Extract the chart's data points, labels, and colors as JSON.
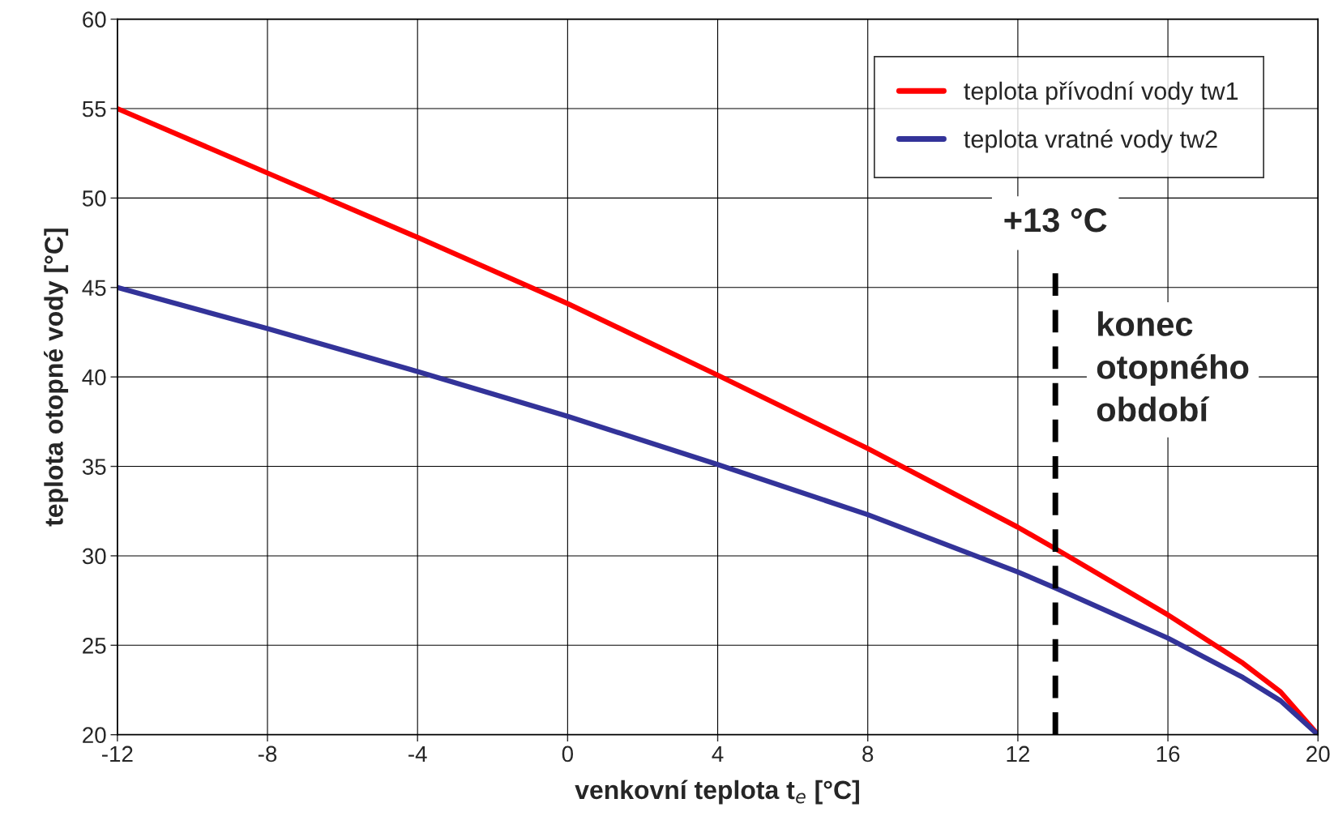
{
  "chart_data": {
    "type": "line",
    "xlabel": "venkovní teplota t$_{e}$ [°C]",
    "ylabel": "teplota otopné vody [°C]",
    "series": [
      {
        "name": "teplota přívodní vody tw1",
        "color": "#ff0000",
        "x": [
          -12,
          -8,
          -4,
          0,
          4,
          8,
          12,
          13,
          16,
          18,
          19,
          20
        ],
        "values": [
          55,
          51.4,
          47.8,
          44.1,
          40.1,
          36.0,
          31.6,
          30.4,
          26.7,
          24.0,
          22.4,
          20
        ]
      },
      {
        "name": "teplota vratné vody tw2",
        "color": "#333399",
        "x": [
          -12,
          -8,
          -4,
          0,
          4,
          8,
          12,
          13,
          16,
          18,
          19,
          20
        ],
        "values": [
          45,
          42.7,
          40.3,
          37.8,
          35.1,
          32.3,
          29.1,
          28.2,
          25.4,
          23.2,
          21.9,
          20
        ]
      }
    ],
    "xlim": [
      -12,
      20
    ],
    "xticks": [
      -12,
      -8,
      -4,
      0,
      4,
      8,
      12,
      16,
      20
    ],
    "ylim": [
      20,
      60
    ],
    "yticks": [
      20,
      25,
      30,
      35,
      40,
      45,
      50,
      55,
      60
    ],
    "ref_lines": [
      {
        "axis": "x",
        "value": 13,
        "label": "+13 °C",
        "color": "#000000",
        "line_style": "dashed"
      }
    ],
    "annotations": [
      "konec\notopného\nobdobí"
    ],
    "grid": true,
    "legend": "top right",
    "marker": "none",
    "line_style": "solid"
  }
}
